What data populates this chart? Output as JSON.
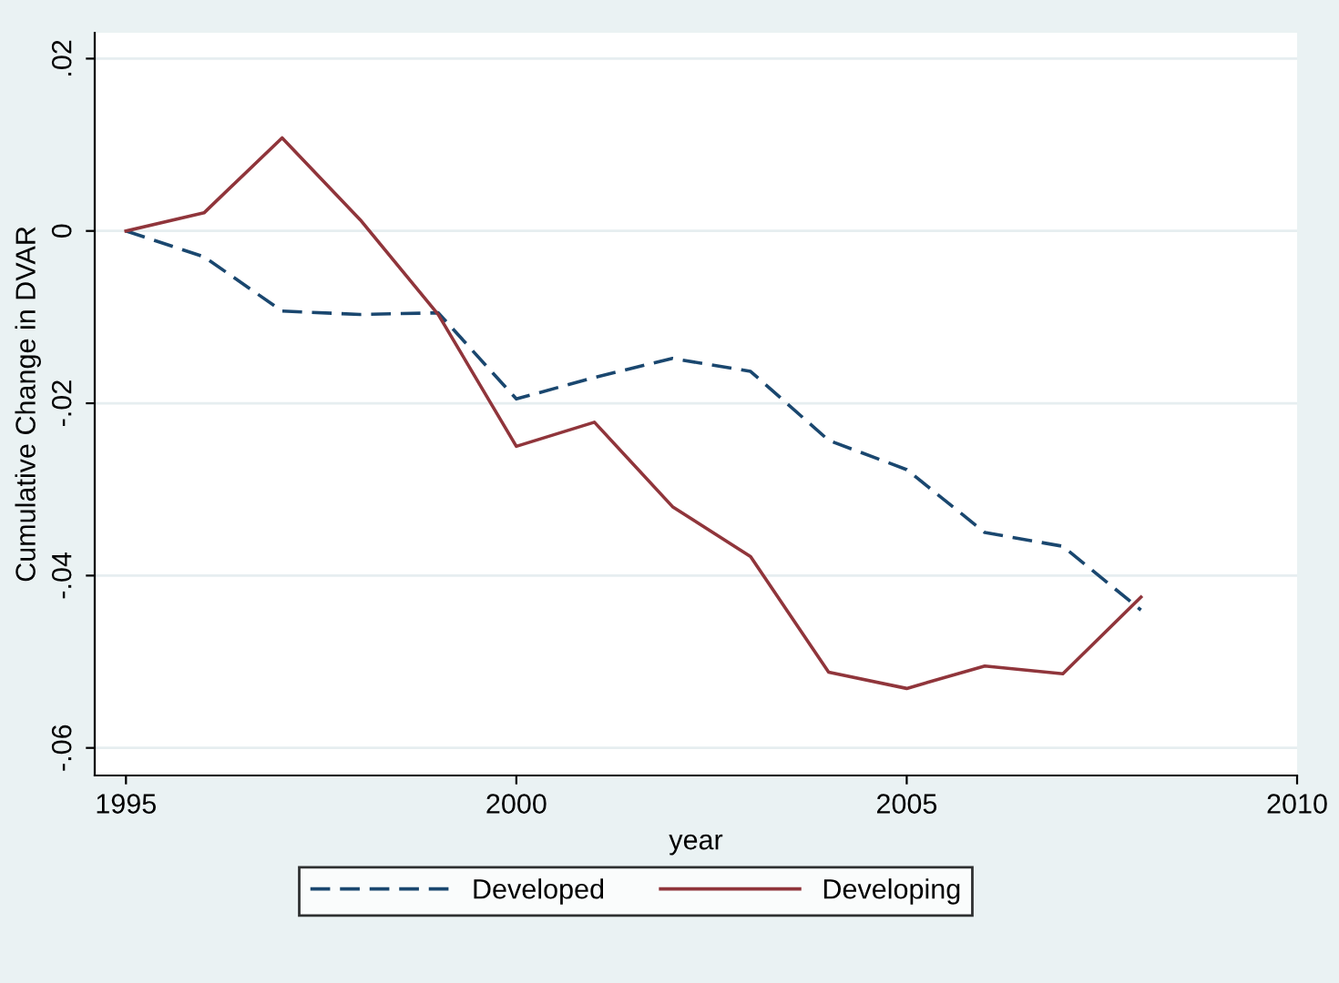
{
  "chart_data": {
    "type": "line",
    "xlabel": "year",
    "ylabel": "Cumulative Change in DVAR",
    "x": [
      1995,
      1996,
      1997,
      1998,
      1999,
      2000,
      2001,
      2002,
      2003,
      2004,
      2005,
      2006,
      2007,
      2008
    ],
    "series": [
      {
        "name": "Developed",
        "color": "#1a476f",
        "line_style": "dashed",
        "values": [
          0,
          -0.003,
          -0.0093,
          -0.0097,
          -0.0095,
          -0.0195,
          -0.017,
          -0.0148,
          -0.0163,
          -0.0243,
          -0.0277,
          -0.035,
          -0.0366,
          -0.044
        ]
      },
      {
        "name": "Developing",
        "color": "#90353b",
        "line_style": "solid",
        "values": [
          0,
          0.0021,
          0.0108,
          0.0013,
          -0.0097,
          -0.025,
          -0.0222,
          -0.032,
          -0.0378,
          -0.0512,
          -0.0531,
          -0.0505,
          -0.0514,
          -0.0425
        ]
      }
    ],
    "xlim": [
      1994.6,
      2010
    ],
    "xticks": [
      1995,
      2000,
      2005,
      2010
    ],
    "ylim": [
      -0.0632,
      0.023
    ],
    "yticks": [
      {
        "value": 0.02,
        "label": ".02"
      },
      {
        "value": 0,
        "label": "0"
      },
      {
        "value": -0.02,
        "label": "-.02"
      },
      {
        "value": -0.04,
        "label": "-.04"
      },
      {
        "value": -0.06,
        "label": "-.06"
      }
    ],
    "grid": "y",
    "legend": "bottom"
  }
}
